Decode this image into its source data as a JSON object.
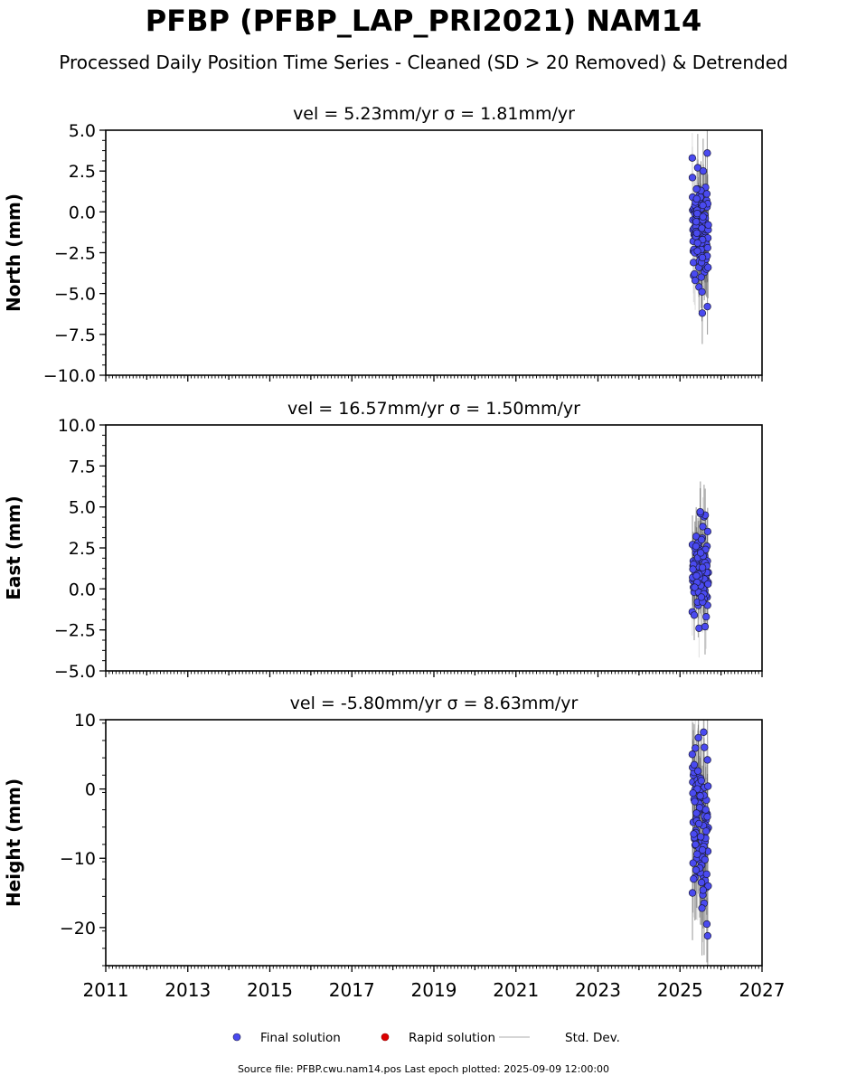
{
  "title": "PFBP (PFBP_LAP_PRI2021) NAM14",
  "subtitle": "Processed Daily Position Time Series - Cleaned (SD > 20 Removed) & Detrended",
  "footer": "Source file: PFBP.cwu.nam14.pos  Last epoch plotted: 2025-09-09 12:00:00",
  "colors": {
    "final": "#4a4af0",
    "rapid": "#dd0000",
    "stddev": "#c8c8c8",
    "errorbar": "#555555"
  },
  "legend": {
    "placement": "bottom-center",
    "items": [
      {
        "label": "Final solution",
        "marker": "circle",
        "color": "#4a4af0"
      },
      {
        "label": "Rapid solution",
        "marker": "circle",
        "color": "#dd0000"
      },
      {
        "label": "Std. Dev.",
        "marker": "line",
        "color": "#c8c8c8"
      }
    ]
  },
  "chart_data": [
    {
      "type": "scatter",
      "title": "vel = 5.23mm/yr   σ = 1.81mm/yr",
      "ylabel": "North (mm)",
      "xlim": [
        2011,
        2027
      ],
      "ylim": [
        -10,
        5
      ],
      "xticks": [
        2011,
        2013,
        2015,
        2017,
        2019,
        2021,
        2023,
        2025,
        2027
      ],
      "yticks": [
        -10,
        -7.5,
        -5,
        -2.5,
        0,
        2.5,
        5
      ],
      "ytick_labels": [
        "−10.0",
        "−7.5",
        "−5.0",
        "−2.5",
        "0.0",
        "2.5",
        "5.0"
      ],
      "x_range": [
        2025.3,
        2025.69
      ],
      "err": 1.8,
      "series": [
        {
          "name": "Final solution",
          "y": [
            3.3,
            2.7,
            2.5,
            2.1,
            1.4,
            1.2,
            0.9,
            0.6,
            0.3,
            0.1,
            -0.1,
            -0.3,
            -0.5,
            -0.7,
            -0.9,
            -1.1,
            -1.3,
            -1.5,
            -1.8,
            -2.0,
            -2.2,
            -2.4,
            -2.6,
            -2.9,
            -3.1,
            -3.4,
            -3.7,
            -3.9,
            -4.6,
            -0.5,
            0.2,
            -0.8,
            -1.6,
            -2.3,
            1.0,
            -0.2,
            -1.0,
            -3.0,
            0.5,
            -1.4,
            -0.6,
            -2.7,
            0.0,
            -1.9,
            -0.4,
            -3.8,
            0.8,
            -1.2,
            -2.5,
            -0.9,
            1.5,
            -0.1,
            -1.7,
            -3.3,
            0.4,
            -2.1,
            -0.7,
            -1.4,
            0.9,
            -2.9,
            -4.2,
            -0.3,
            -1.8,
            0.6,
            -2.6,
            -1.1,
            -0.5,
            1.3,
            -3.5,
            -0.8,
            0.2,
            -2.0,
            -1.5,
            -4.0,
            0.7,
            -0.9,
            -2.3,
            1.1,
            -1.2,
            -3.1,
            0.3,
            -0.6,
            -1.9,
            -2.7,
            0.0,
            -1.0,
            3.6,
            1.4,
            -4.9,
            -5.8,
            0.8,
            -0.4,
            -2.2,
            -1.3,
            -6.2,
            0.5,
            -0.2,
            -2.8,
            -1.6,
            0.1,
            -1.7,
            -3.4,
            -0.1,
            -0.5,
            -1.1,
            -2.4,
            0.4,
            -0.8,
            -1.9,
            -0.3
          ]
        }
      ]
    },
    {
      "type": "scatter",
      "title": "vel = 16.57mm/yr   σ = 1.50mm/yr",
      "ylabel": "East (mm)",
      "xlim": [
        2011,
        2027
      ],
      "ylim": [
        -5,
        10
      ],
      "xticks": [
        2011,
        2013,
        2015,
        2017,
        2019,
        2021,
        2023,
        2025,
        2027
      ],
      "yticks": [
        -5,
        -2.5,
        0,
        2.5,
        5,
        7.5,
        10
      ],
      "ytick_labels": [
        "−5.0",
        "−2.5",
        "0.0",
        "2.5",
        "5.0",
        "7.5",
        "10.0"
      ],
      "x_range": [
        2025.3,
        2025.69
      ],
      "err": 1.7,
      "series": [
        {
          "name": "Final solution",
          "y": [
            -1.4,
            -1.0,
            -0.6,
            -0.2,
            0.2,
            0.6,
            1.0,
            1.3,
            0.4,
            -0.8,
            0.9,
            0.1,
            -0.3,
            1.2,
            0.7,
            0.3,
            -0.5,
            1.6,
            2.0,
            0.5,
            1.1,
            -0.1,
            0.8,
            2.4,
            1.5,
            0.2,
            3.1,
            1.0,
            2.7,
            4.4,
            0.6,
            1.8,
            -0.4,
            2.2,
            1.3,
            3.5,
            0.9,
            0.0,
            1.7,
            2.9,
            4.5,
            1.4,
            0.3,
            2.6,
            1.1,
            3.8,
            0.7,
            -0.2,
            2.0,
            1.5,
            4.6,
            0.9,
            3.2,
            1.9,
            0.4,
            2.8,
            -0.6,
            1.2,
            2.3,
            0.8,
            1.6,
            3.0,
            -1.0,
            2.1,
            0.5,
            1.4,
            -2.4,
            -2.3,
            2.5,
            0.2,
            1.0,
            1.8,
            -0.8,
            2.7,
            1.3,
            0.6,
            -1.6,
            4.7,
            -1.7,
            2.6,
            1.1,
            0.3,
            1.9,
            -0.3,
            1.5,
            0.7,
            2.4,
            1.0,
            -0.5,
            1.7,
            0.4,
            2.0,
            1.2,
            0.9,
            1.6,
            0.1,
            2.2,
            1.4,
            0.8,
            1.3
          ]
        }
      ]
    },
    {
      "type": "scatter",
      "title": "vel = -5.80mm/yr   σ = 8.63mm/yr",
      "ylabel": "Height (mm)",
      "xlim": [
        2011,
        2027
      ],
      "ylim": [
        -25.5,
        10
      ],
      "xticks": [
        2011,
        2013,
        2015,
        2017,
        2019,
        2021,
        2023,
        2025,
        2027
      ],
      "xtick_labels": [
        "2011",
        "2013",
        "2015",
        "2017",
        "2019",
        "2021",
        "2023",
        "2025",
        "2027"
      ],
      "yticks": [
        -20,
        -10,
        0,
        10
      ],
      "ytick_labels": [
        "−20",
        "−10",
        "0",
        "10"
      ],
      "x_range": [
        2025.3,
        2025.69
      ],
      "err": 6.5,
      "series": [
        {
          "name": "Final solution",
          "y": [
            5.0,
            1.8,
            0.2,
            -1.5,
            -3.0,
            -4.5,
            -6.0,
            -7.5,
            -9.0,
            -11.8,
            8.2,
            2.0,
            -2.2,
            -5.2,
            -8.1,
            -0.8,
            -3.6,
            -6.8,
            -12.5,
            1.0,
            -1.9,
            -4.1,
            -7.2,
            -10.4,
            -14.2,
            0.5,
            -2.8,
            -5.6,
            -9.6,
            -16.5,
            2.4,
            -0.4,
            -3.3,
            -6.3,
            -11.0,
            -21.2,
            1.3,
            -1.2,
            -4.8,
            -8.6,
            -13.2,
            -0.1,
            -2.5,
            -5.9,
            -10.0,
            -15.3,
            3.1,
            0.8,
            -3.9,
            -7.0,
            -12.1,
            -1.6,
            -4.3,
            -9.2,
            -14.0,
            2.6,
            -0.9,
            -6.5,
            -11.4,
            -3.0,
            -8.0,
            -13.5,
            4.2,
            0.0,
            -5.3,
            -10.7,
            -2.1,
            -7.6,
            -12.8,
            1.5,
            -19.5,
            -4.6,
            -9.9,
            -15.0,
            7.4,
            6.0,
            3.5,
            -1.0,
            -6.1,
            -11.7,
            -17.2,
            0.4,
            -3.4,
            -8.3,
            -13.0,
            -2.7,
            -7.1,
            5.9,
            1.2,
            -4.0,
            -9.4,
            -14.6,
            -0.6,
            -5.0,
            -10.2,
            -1.8,
            -6.9,
            -12.3,
            -3.5,
            -8.8
          ]
        }
      ]
    }
  ]
}
